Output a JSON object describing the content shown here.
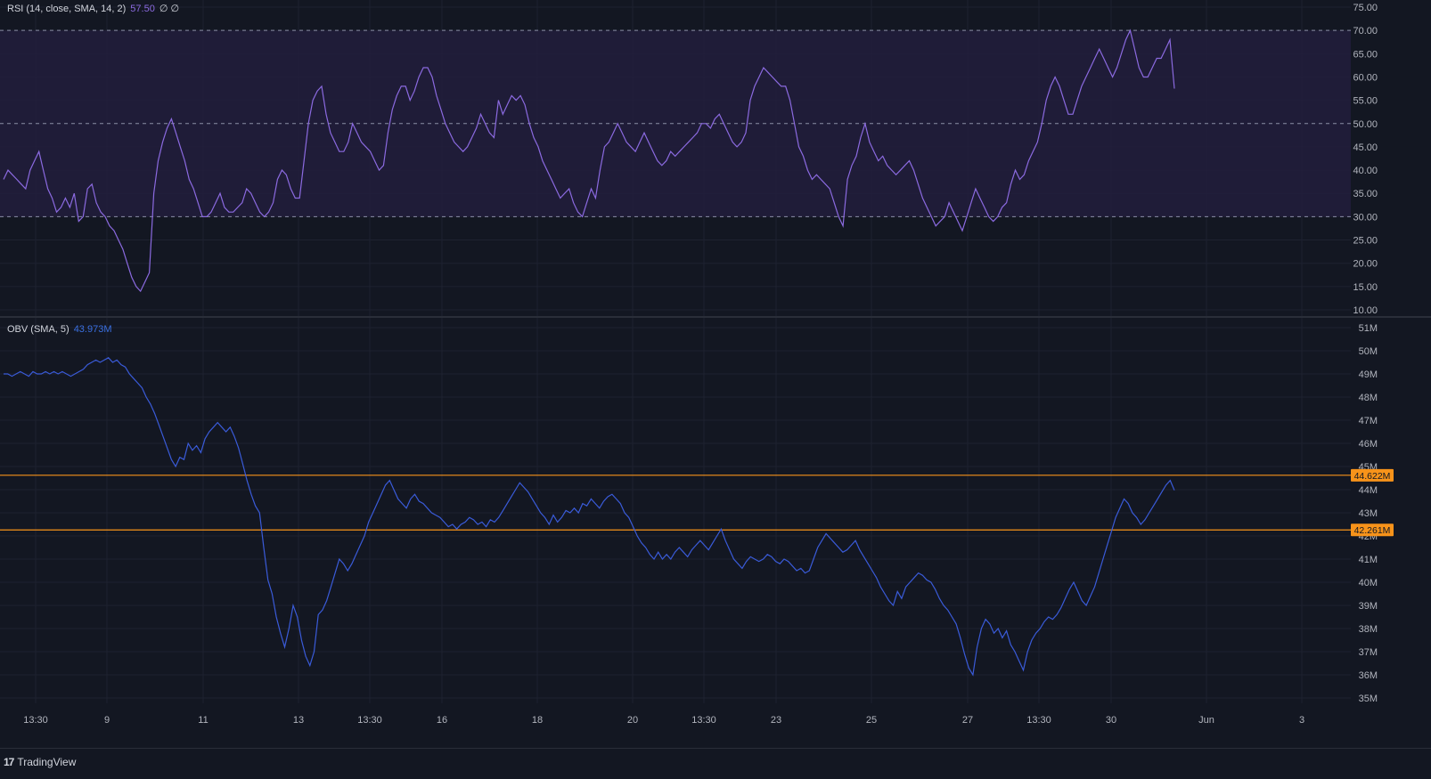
{
  "colors": {
    "background": "#131722",
    "grid": "#1e2230",
    "rsi_line": "#8b6ae0",
    "rsi_band": "#221d3c",
    "rsi_level": "#8a8fa6",
    "obv_line": "#3a5bd9",
    "level_line": "#f7931a",
    "axis_text": "#b2b5be"
  },
  "brand": {
    "name": "TradingView",
    "icon": "tradingview-logo-icon"
  },
  "chart_data": [
    {
      "type": "line",
      "indicator": "RSI",
      "title": "RSI (14, close, SMA, 14, 2)",
      "current_value": "57.50",
      "extra": "∅ ∅",
      "ylim": [
        10,
        75
      ],
      "y_ticks": [
        "75.00",
        "70.00",
        "65.00",
        "60.00",
        "55.00",
        "50.00",
        "45.00",
        "40.00",
        "35.00",
        "30.00",
        "25.00",
        "20.00",
        "15.00",
        "10.00"
      ],
      "levels": [
        70,
        50,
        30
      ],
      "band": [
        30,
        70
      ],
      "x_ticks": [
        "13:30",
        "9",
        "11",
        "13",
        "13:30",
        "16",
        "18",
        "20",
        "13:30",
        "23",
        "25",
        "27",
        "13:30",
        "30",
        "Jun",
        "3"
      ],
      "series": [
        {
          "values": [
            38,
            40,
            39,
            38,
            37,
            36,
            40,
            42,
            44,
            40,
            36,
            34,
            31,
            32,
            34,
            32,
            35,
            29,
            30,
            36,
            37,
            33,
            31,
            30,
            28,
            27,
            25,
            23,
            20,
            17,
            15,
            14,
            16,
            18,
            35,
            42,
            46,
            49,
            51,
            48,
            45,
            42,
            38,
            36,
            33,
            30,
            30,
            31,
            33,
            35,
            32,
            31,
            31,
            32,
            33,
            36,
            35,
            33,
            31,
            30,
            31,
            33,
            38,
            40,
            39,
            36,
            34,
            34,
            42,
            50,
            55,
            57,
            58,
            52,
            48,
            46,
            44,
            44,
            46,
            50,
            48,
            46,
            45,
            44,
            42,
            40,
            41,
            48,
            53,
            56,
            58,
            58,
            55,
            57,
            60,
            62,
            62,
            60,
            56,
            53,
            50,
            48,
            46,
            45,
            44,
            45,
            47,
            49,
            52,
            50,
            48,
            47,
            55,
            52,
            54,
            56,
            55,
            56,
            54,
            50,
            47,
            45,
            42,
            40,
            38,
            36,
            34,
            35,
            36,
            33,
            31,
            30,
            33,
            36,
            34,
            40,
            45,
            46,
            48,
            50,
            48,
            46,
            45,
            44,
            46,
            48,
            46,
            44,
            42,
            41,
            42,
            44,
            43,
            44,
            45,
            46,
            47,
            48,
            50,
            50,
            49,
            51,
            52,
            50,
            48,
            46,
            45,
            46,
            48,
            55,
            58,
            60,
            62,
            61,
            60,
            59,
            58,
            58,
            55,
            50,
            45,
            43,
            40,
            38,
            39,
            38,
            37,
            36,
            33,
            30,
            28,
            38,
            41,
            43,
            47,
            50,
            46,
            44,
            42,
            43,
            41,
            40,
            39,
            40,
            41,
            42,
            40,
            37,
            34,
            32,
            30,
            28,
            29,
            30,
            33,
            31,
            29,
            27,
            30,
            33,
            36,
            34,
            32,
            30,
            29,
            30,
            32,
            33,
            37,
            40,
            38,
            39,
            42,
            44,
            46,
            50,
            55,
            58,
            60,
            58,
            55,
            52,
            52,
            55,
            58,
            60,
            62,
            64,
            66,
            64,
            62,
            60,
            62,
            65,
            68,
            70,
            66,
            62,
            60,
            60,
            62,
            64,
            64,
            66,
            68,
            57.5
          ]
        }
      ]
    },
    {
      "type": "line",
      "indicator": "OBV",
      "title": "OBV (SMA, 5)",
      "current_value": "43.973M",
      "ylim": [
        35,
        51
      ],
      "y_ticks": [
        "51M",
        "50M",
        "49M",
        "48M",
        "47M",
        "46M",
        "45M",
        "44M",
        "43M",
        "42M",
        "41M",
        "40M",
        "39M",
        "38M",
        "37M",
        "36M",
        "35M"
      ],
      "levels": [
        {
          "value": 44.622,
          "label": "44.622M"
        },
        {
          "value": 42.261,
          "label": "42.261M"
        }
      ],
      "x_ticks": [
        "13:30",
        "9",
        "11",
        "13",
        "13:30",
        "16",
        "18",
        "20",
        "13:30",
        "23",
        "25",
        "27",
        "13:30",
        "30",
        "Jun",
        "3"
      ],
      "series": [
        {
          "values": [
            49.0,
            49.0,
            48.9,
            49.0,
            49.1,
            49.0,
            48.9,
            49.1,
            49.0,
            49.0,
            49.1,
            49.0,
            49.1,
            49.0,
            49.1,
            49.0,
            48.9,
            49.0,
            49.1,
            49.2,
            49.4,
            49.5,
            49.6,
            49.5,
            49.6,
            49.7,
            49.5,
            49.6,
            49.4,
            49.3,
            49.0,
            48.8,
            48.6,
            48.4,
            48.0,
            47.7,
            47.3,
            46.8,
            46.3,
            45.8,
            45.3,
            45.0,
            45.4,
            45.3,
            46.0,
            45.7,
            45.9,
            45.6,
            46.2,
            46.5,
            46.7,
            46.9,
            46.7,
            46.5,
            46.7,
            46.3,
            45.8,
            45.1,
            44.4,
            43.8,
            43.3,
            43.0,
            41.5,
            40.1,
            39.5,
            38.5,
            37.8,
            37.2,
            38.0,
            39.0,
            38.5,
            37.5,
            36.8,
            36.4,
            37.0,
            38.6,
            38.8,
            39.2,
            39.8,
            40.4,
            41.0,
            40.8,
            40.5,
            40.8,
            41.2,
            41.6,
            42.0,
            42.6,
            43.0,
            43.4,
            43.8,
            44.2,
            44.4,
            44.0,
            43.6,
            43.4,
            43.2,
            43.6,
            43.8,
            43.5,
            43.4,
            43.2,
            43.0,
            42.9,
            42.8,
            42.6,
            42.4,
            42.5,
            42.3,
            42.5,
            42.6,
            42.8,
            42.7,
            42.5,
            42.6,
            42.4,
            42.7,
            42.6,
            42.8,
            43.1,
            43.4,
            43.7,
            44.0,
            44.3,
            44.1,
            43.9,
            43.6,
            43.3,
            43.0,
            42.8,
            42.5,
            42.9,
            42.6,
            42.8,
            43.1,
            43.0,
            43.2,
            43.0,
            43.4,
            43.3,
            43.6,
            43.4,
            43.2,
            43.5,
            43.7,
            43.8,
            43.6,
            43.4,
            43.0,
            42.8,
            42.4,
            42.0,
            41.7,
            41.5,
            41.2,
            41.0,
            41.3,
            41.0,
            41.2,
            41.0,
            41.3,
            41.5,
            41.3,
            41.1,
            41.4,
            41.6,
            41.8,
            41.6,
            41.4,
            41.7,
            42.0,
            42.3,
            41.8,
            41.4,
            41.0,
            40.8,
            40.6,
            40.9,
            41.1,
            41.0,
            40.9,
            41.0,
            41.2,
            41.1,
            40.9,
            40.8,
            41.0,
            40.9,
            40.7,
            40.5,
            40.6,
            40.4,
            40.5,
            41.0,
            41.5,
            41.8,
            42.1,
            41.9,
            41.7,
            41.5,
            41.3,
            41.4,
            41.6,
            41.8,
            41.4,
            41.1,
            40.8,
            40.5,
            40.2,
            39.8,
            39.5,
            39.2,
            39.0,
            39.6,
            39.3,
            39.8,
            40.0,
            40.2,
            40.4,
            40.3,
            40.1,
            40.0,
            39.7,
            39.3,
            39.0,
            38.8,
            38.5,
            38.2,
            37.6,
            36.9,
            36.3,
            36.0,
            37.2,
            38.0,
            38.4,
            38.2,
            37.8,
            38.0,
            37.6,
            37.9,
            37.3,
            37.0,
            36.6,
            36.2,
            37.0,
            37.5,
            37.8,
            38.0,
            38.3,
            38.5,
            38.4,
            38.6,
            38.9,
            39.3,
            39.7,
            40.0,
            39.6,
            39.2,
            39.0,
            39.4,
            39.8,
            40.4,
            41.0,
            41.6,
            42.2,
            42.8,
            43.2,
            43.6,
            43.4,
            43.0,
            42.8,
            42.5,
            42.7,
            43.0,
            43.3,
            43.6,
            43.9,
            44.2,
            44.4,
            43.973
          ]
        }
      ]
    }
  ]
}
